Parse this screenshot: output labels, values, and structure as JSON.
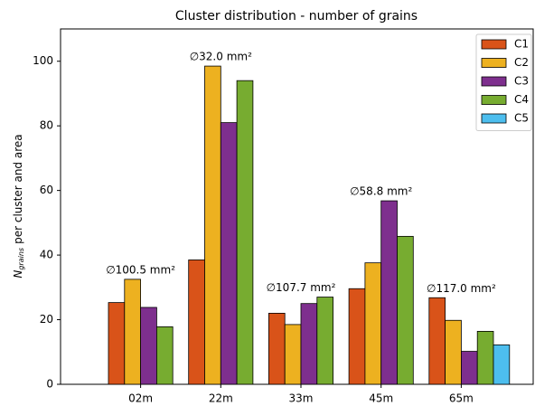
{
  "chart_data": {
    "type": "bar",
    "title": "Cluster distribution - number of grains",
    "y_label": {
      "symbol": "N",
      "subscript": "grains",
      "text": "per cluster and area"
    },
    "categories": [
      "02m",
      "22m",
      "33m",
      "45m",
      "65m"
    ],
    "series": [
      {
        "name": "C1",
        "color": "#d95319",
        "values": [
          25.3,
          38.5,
          22,
          29.6,
          26.8
        ]
      },
      {
        "name": "C2",
        "color": "#edb120",
        "values": [
          32.5,
          98.5,
          18.5,
          37.6,
          19.8
        ]
      },
      {
        "name": "C3",
        "color": "#7e2f8e",
        "values": [
          23.8,
          81,
          25,
          56.8,
          10.2
        ]
      },
      {
        "name": "C4",
        "color": "#77ac30",
        "values": [
          17.8,
          94,
          27,
          45.8,
          16.4
        ]
      },
      {
        "name": "C5",
        "color": "#4dbeee",
        "values": [
          null,
          null,
          null,
          null,
          12.2
        ]
      }
    ],
    "annotations": [
      "∅100.5 mm²",
      "∅32.0 mm²",
      "∅107.7 mm²",
      "∅58.8 mm²",
      "∅117.0 mm²"
    ],
    "ylim": [
      0,
      110
    ],
    "yticks": [
      0,
      20,
      40,
      60,
      80,
      100
    ],
    "grid": false,
    "legend": "upper right"
  }
}
